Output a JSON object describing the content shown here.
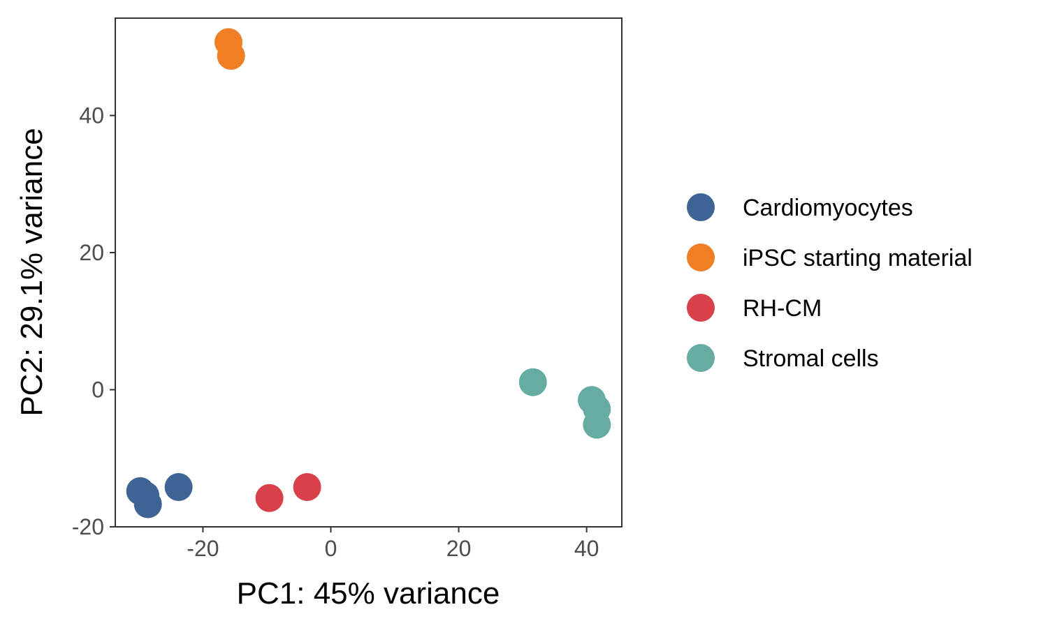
{
  "chart_data": {
    "type": "scatter",
    "xlabel": "PC1: 45% variance",
    "ylabel": "PC2: 29.1% variance",
    "xlim": [
      -33.7,
      45.5
    ],
    "ylim": [
      -20,
      54.2
    ],
    "xticks": [
      {
        "value": -20,
        "label": "-20"
      },
      {
        "value": 0,
        "label": "0"
      },
      {
        "value": 20,
        "label": "20"
      },
      {
        "value": 40,
        "label": "40"
      }
    ],
    "yticks": [
      {
        "value": -20,
        "label": "-20"
      },
      {
        "value": 0,
        "label": "0"
      },
      {
        "value": 20,
        "label": "20"
      },
      {
        "value": 40,
        "label": "40"
      }
    ],
    "grid": false,
    "legend_position": "right",
    "series": [
      {
        "name": "Cardiomyocytes",
        "color": "#3e6496",
        "points": [
          {
            "x": -29.8,
            "y": -14.8
          },
          {
            "x": -29.0,
            "y": -15.4
          },
          {
            "x": -28.6,
            "y": -16.7
          },
          {
            "x": -23.8,
            "y": -14.2
          }
        ]
      },
      {
        "name": "iPSC starting material",
        "color": "#ef7e25",
        "points": [
          {
            "x": -16.0,
            "y": 50.7
          },
          {
            "x": -15.6,
            "y": 48.7
          }
        ]
      },
      {
        "name": "RH-CM",
        "color": "#d8404a",
        "points": [
          {
            "x": -9.6,
            "y": -15.8
          },
          {
            "x": -3.7,
            "y": -14.2
          }
        ]
      },
      {
        "name": "Stromal cells",
        "color": "#66aca3",
        "points": [
          {
            "x": 31.6,
            "y": 1.1
          },
          {
            "x": 40.8,
            "y": -1.5
          },
          {
            "x": 41.6,
            "y": -2.8
          },
          {
            "x": 41.6,
            "y": -5.1
          }
        ]
      }
    ]
  }
}
